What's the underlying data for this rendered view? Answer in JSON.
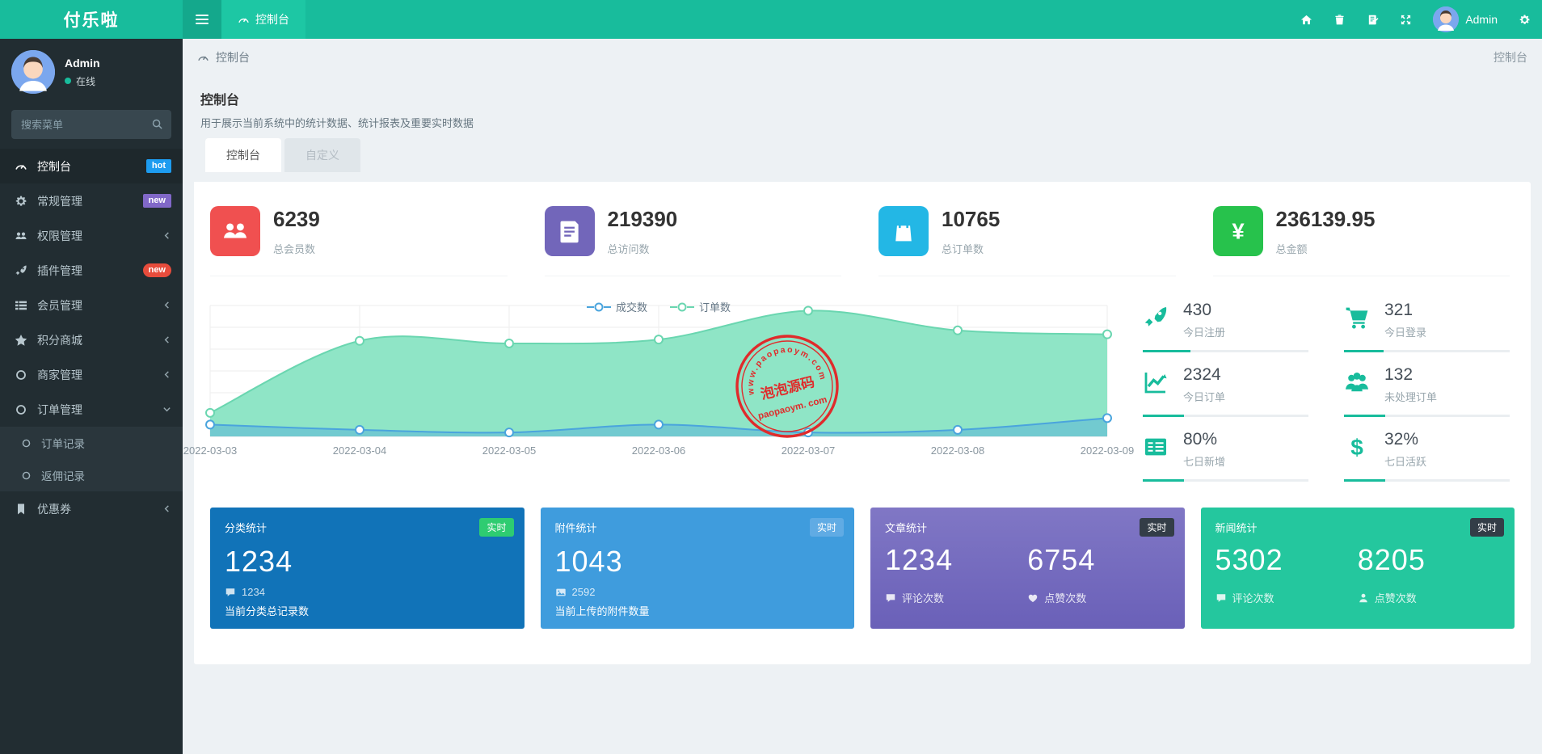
{
  "navbar": {
    "logo": "付乐啦",
    "tab": "控制台",
    "username": "Admin"
  },
  "sidebar": {
    "user_name": "Admin",
    "user_status": "在线",
    "search_placeholder": "搜索菜单",
    "items": [
      {
        "label": "控制台",
        "badge": "hot"
      },
      {
        "label": "常规管理",
        "badge": "new"
      },
      {
        "label": "权限管理"
      },
      {
        "label": "插件管理",
        "badge": "new"
      },
      {
        "label": "会员管理"
      },
      {
        "label": "积分商城"
      },
      {
        "label": "商家管理"
      },
      {
        "label": "订单管理",
        "children": [
          {
            "label": "订单记录"
          },
          {
            "label": "返佣记录"
          }
        ]
      },
      {
        "label": "优惠券"
      }
    ]
  },
  "breadcrumb": {
    "current": "控制台",
    "right": "控制台"
  },
  "page": {
    "title": "控制台",
    "subtitle": "用于展示当前系统中的统计数据、统计报表及重要实时数据",
    "tabs": [
      {
        "label": "控制台"
      },
      {
        "label": "自定义"
      }
    ]
  },
  "stats": [
    {
      "value": "6239",
      "label": "总会员数"
    },
    {
      "value": "219390",
      "label": "总访问数"
    },
    {
      "value": "10765",
      "label": "总订单数"
    },
    {
      "value": "236139.95",
      "label": "总金额"
    }
  ],
  "chart_data": {
    "type": "area",
    "x": [
      "2022-03-03",
      "2022-03-04",
      "2022-03-05",
      "2022-03-06",
      "2022-03-07",
      "2022-03-08",
      "2022-03-09"
    ],
    "series": [
      {
        "name": "成交数",
        "color": "#4aa4dd",
        "values": [
          9,
          5,
          3,
          9,
          3,
          5,
          14
        ]
      },
      {
        "name": "订单数",
        "color": "#6ad6b0",
        "values": [
          18,
          73,
          71,
          74,
          96,
          81,
          78
        ]
      }
    ],
    "ylim": [
      0,
      100
    ],
    "grid": true,
    "legend_position": "top-center",
    "note": "y-axis unlabeled; values estimated relative 0-100"
  },
  "quick_stats": [
    {
      "value": "430",
      "label": "今日注册",
      "progress": 29
    },
    {
      "value": "321",
      "label": "今日登录",
      "progress": 24
    },
    {
      "value": "2324",
      "label": "今日订单",
      "progress": 25
    },
    {
      "value": "132",
      "label": "未处理订单",
      "progress": 25
    },
    {
      "value": "80%",
      "label": "七日新增",
      "progress": 25
    },
    {
      "value": "32%",
      "label": "七日活跃",
      "progress": 25
    }
  ],
  "panels": [
    {
      "title": "分类统计",
      "badge": "实时",
      "badge_bg": "#2ecc71",
      "bg": "#1173b8",
      "big": "1234",
      "sub_value": "1234",
      "desc": "当前分类总记录数"
    },
    {
      "title": "附件统计",
      "badge": "实时",
      "badge_bg": "#60abe4",
      "bg": "#3f9cdd",
      "big": "1043",
      "sub_value": "2592",
      "desc": "当前上传的附件数量"
    },
    {
      "title": "文章统计",
      "badge": "实时",
      "badge_bg": "#333d47",
      "bg": "linear-gradient(180deg,#8077c5,#6a60b8)",
      "pairs": [
        {
          "value": "1234",
          "label": "评论次数"
        },
        {
          "value": "6754",
          "label": "点赞次数"
        }
      ]
    },
    {
      "title": "新闻统计",
      "badge": "实时",
      "badge_bg": "#333d47",
      "bg": "#24c79e",
      "pairs": [
        {
          "value": "5302",
          "label": "评论次数"
        },
        {
          "value": "8205",
          "label": "点赞次数"
        }
      ]
    }
  ],
  "watermark": {
    "top": "www.paopaoym.com",
    "middle": "泡泡源码",
    "bottom": "paopaoym. com"
  },
  "colors": {
    "primary": "#18bc9c",
    "sidebar_bg": "#222d32",
    "hot_badge": "#1d9cf0",
    "new_badge_purple": "#8168c8",
    "new_badge_red": "#e74c3c",
    "stat_red": "#f05050",
    "stat_purple": "#7266ba",
    "stat_blue": "#23b7e5",
    "stat_green": "#27c24c",
    "chart_line": "#4aa4dd",
    "chart_area": "#8fe5c6",
    "watermark_red": "#e02b2b"
  }
}
